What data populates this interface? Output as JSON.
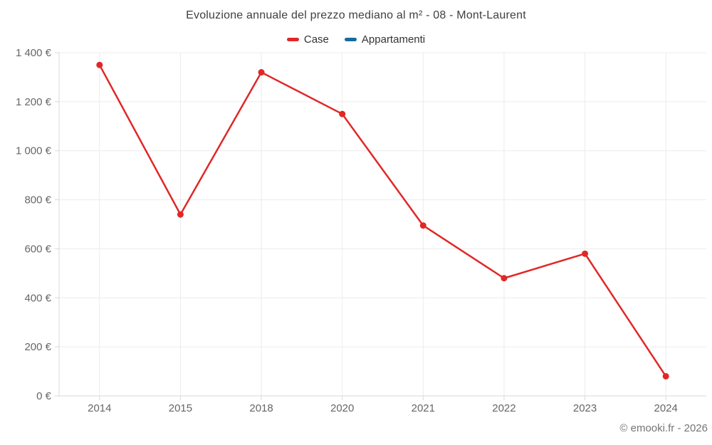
{
  "header": {
    "title": "Evoluzione annuale del prezzo mediano al m² - 08 - Mont-Laurent"
  },
  "legend": {
    "items": [
      {
        "label": "Case",
        "color": "#e02827"
      },
      {
        "label": "Appartamenti",
        "color": "#17699e"
      }
    ]
  },
  "watermark": "© emooki.fr - 2026",
  "chart_data": {
    "type": "line",
    "title": "Evoluzione annuale del prezzo mediano al m² - 08 - Mont-Laurent",
    "categories": [
      "2014",
      "2015",
      "2018",
      "2020",
      "2021",
      "2022",
      "2023",
      "2024"
    ],
    "series": [
      {
        "name": "Case",
        "color": "#e02827",
        "values": [
          1350,
          740,
          1320,
          1150,
          695,
          480,
          580,
          80
        ]
      },
      {
        "name": "Appartamenti",
        "color": "#17699e",
        "values": []
      }
    ],
    "xlabel": "",
    "ylabel": "",
    "ylim": [
      0,
      1400
    ],
    "ytick_step": 200,
    "y_tick_suffix": " €",
    "grid": true,
    "legend_position": "top",
    "colors": {
      "grid": "#ececec",
      "axis": "#d9d9d9",
      "tick_label": "#666666"
    }
  }
}
